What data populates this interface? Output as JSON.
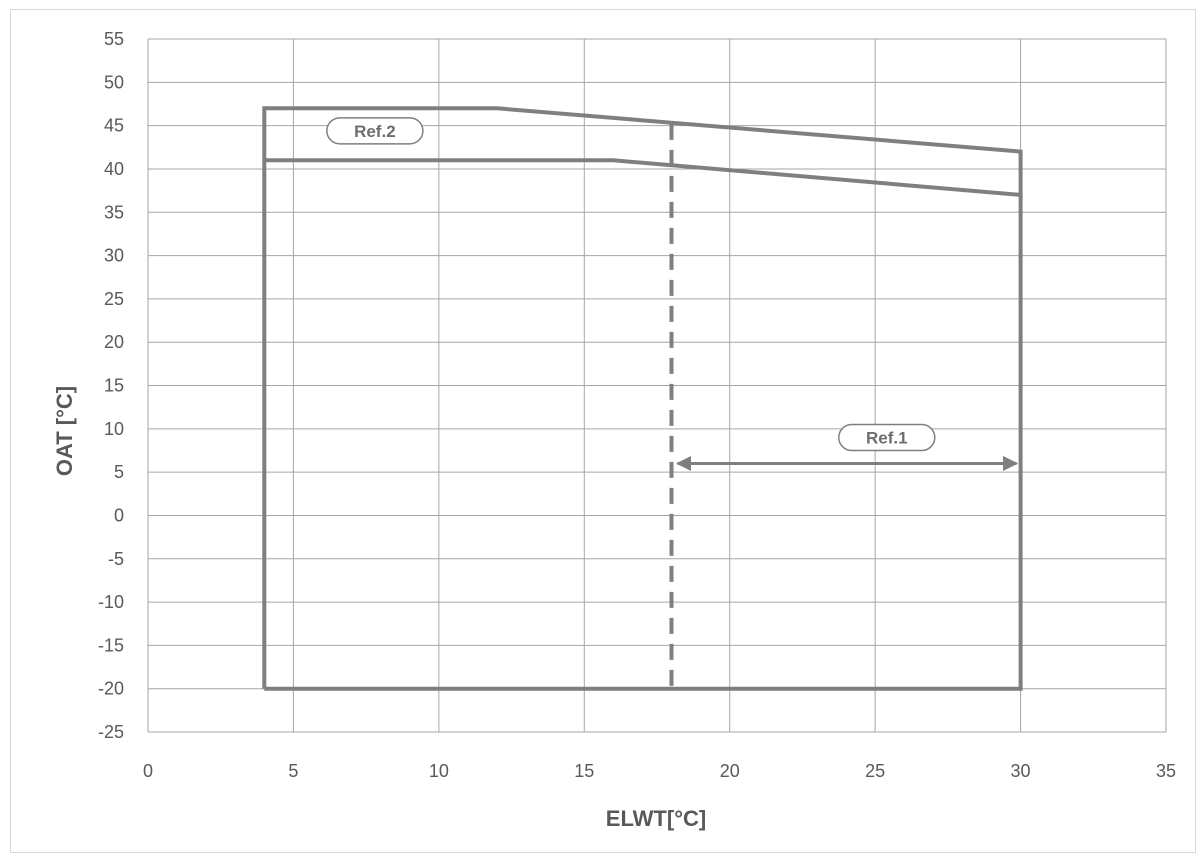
{
  "chart_data": {
    "type": "line",
    "title": "",
    "xlabel": "ELWT[°C]",
    "ylabel": "OAT [°C]",
    "xlim": [
      0,
      35
    ],
    "ylim": [
      -25,
      55
    ],
    "xticks": [
      0,
      5,
      10,
      15,
      20,
      25,
      30,
      35
    ],
    "yticks": [
      55,
      50,
      45,
      40,
      35,
      30,
      25,
      20,
      15,
      10,
      5,
      0,
      -5,
      -10,
      -15,
      -20,
      -25
    ],
    "grid": true,
    "legend": "none",
    "colors": {
      "line": "#7f7f7f",
      "grid": "#a6a6a6",
      "text": "#595959"
    },
    "series": [
      {
        "x": [
          4,
          4,
          12,
          30,
          30,
          4
        ],
        "y": [
          -20,
          47,
          47,
          42,
          -20,
          -20
        ]
      },
      {
        "x": [
          4,
          16,
          30
        ],
        "y": [
          41,
          41,
          37
        ]
      },
      {
        "style": "dashed",
        "x": [
          18,
          18
        ],
        "y": [
          45.2,
          -20
        ]
      }
    ],
    "annotations": [
      {
        "text": "Ref.1",
        "x": 25.4,
        "y": 9
      },
      {
        "text": "Ref.2",
        "x": 7.8,
        "y": 44.4
      }
    ],
    "ref1_arrow": {
      "x1": 18,
      "x2": 30,
      "y": 6
    }
  }
}
